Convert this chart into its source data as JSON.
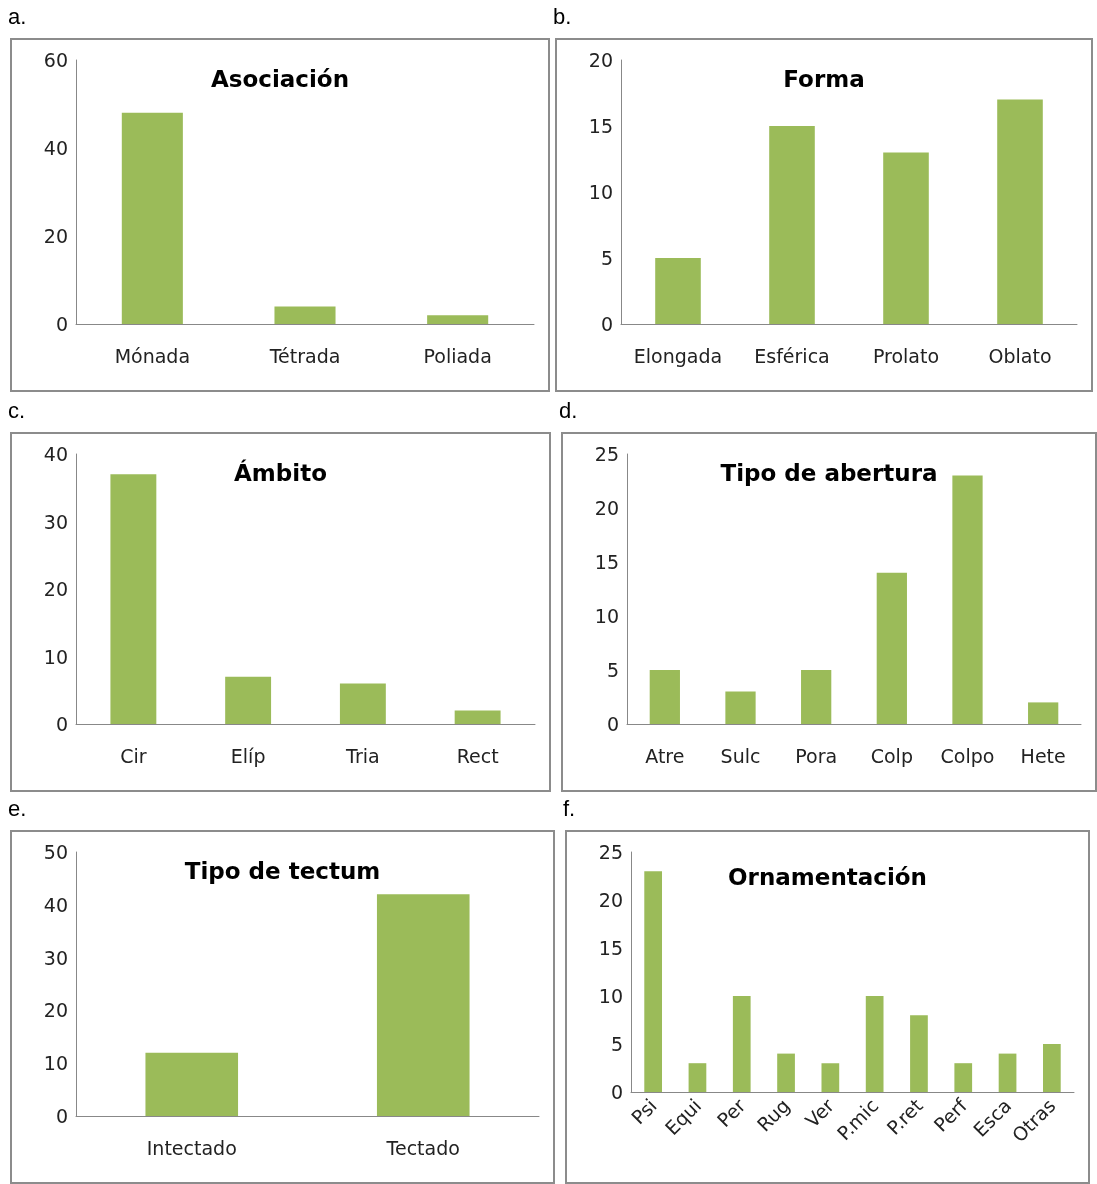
{
  "chart_data": [
    {
      "type": "bar",
      "title": "Asociación",
      "annotations": [
        "a."
      ],
      "categories": [
        "Mónada",
        "Tétrada",
        "Poliada"
      ],
      "values": [
        48,
        4,
        2
      ],
      "color": "#9bbb59",
      "ylim": [
        0,
        60
      ],
      "yticks": [
        0,
        20,
        40,
        60
      ],
      "grid": false
    },
    {
      "type": "bar",
      "title": "Forma",
      "annotations": [
        "b."
      ],
      "categories": [
        "Elongada",
        "Esférica",
        "Prolato",
        "Oblato"
      ],
      "values": [
        5,
        15,
        13,
        17
      ],
      "color": "#9bbb59",
      "ylim": [
        0,
        20
      ],
      "yticks": [
        0,
        5,
        10,
        15,
        20
      ],
      "grid": false
    },
    {
      "type": "bar",
      "title": "Ámbito",
      "annotations": [
        "c."
      ],
      "categories": [
        "Cir",
        "Elíp",
        "Tria",
        "Rect"
      ],
      "values": [
        37,
        7,
        6,
        2
      ],
      "color": "#9bbb59",
      "ylim": [
        0,
        40
      ],
      "yticks": [
        0,
        10,
        20,
        30,
        40
      ],
      "grid": false
    },
    {
      "type": "bar",
      "title": "Tipo de abertura",
      "annotations": [
        "d."
      ],
      "categories": [
        "Atre",
        "Sulc",
        "Pora",
        "Colp",
        "Colpo",
        "Hete"
      ],
      "values": [
        5,
        3,
        5,
        14,
        23,
        2
      ],
      "color": "#9bbb59",
      "ylim": [
        0,
        25
      ],
      "yticks": [
        0,
        5,
        10,
        15,
        20,
        25
      ],
      "grid": false
    },
    {
      "type": "bar",
      "title": "Tipo de tectum",
      "annotations": [
        "e."
      ],
      "categories": [
        "Intectado",
        "Tectado"
      ],
      "values": [
        12,
        42
      ],
      "color": "#9bbb59",
      "ylim": [
        0,
        50
      ],
      "yticks": [
        0,
        10,
        20,
        30,
        40,
        50
      ],
      "grid": false
    },
    {
      "type": "bar",
      "title": "Ornamentación",
      "annotations": [
        "f."
      ],
      "categories": [
        "Psi",
        "Equi",
        "Per",
        "Rug",
        "Ver",
        "P.mic",
        "P.ret",
        "Perf",
        "Esca",
        "Otras"
      ],
      "values": [
        23,
        3,
        10,
        4,
        3,
        10,
        8,
        3,
        4,
        5
      ],
      "color": "#9bbb59",
      "ylim": [
        0,
        25
      ],
      "yticks": [
        0,
        5,
        10,
        15,
        20,
        25
      ],
      "grid": false
    }
  ]
}
